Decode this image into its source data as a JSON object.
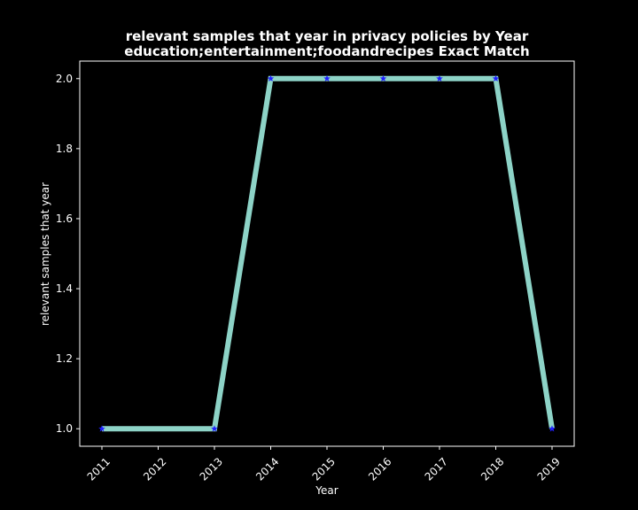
{
  "chart_data": {
    "type": "line",
    "title_line1": "relevant samples that year in privacy policies by Year",
    "title_line2": "education;entertainment;foodandrecipes Exact Match",
    "xlabel": "Year",
    "ylabel": "relevant samples that year",
    "x": [
      "2011",
      "2012",
      "2013",
      "2014",
      "2015",
      "2016",
      "2017",
      "2018",
      "2019"
    ],
    "x_ticks": [
      "2011",
      "2012",
      "2013",
      "2014",
      "2015",
      "2016",
      "2017",
      "2018",
      "2019"
    ],
    "points_x": [
      "2011",
      "2013",
      "2014",
      "2015",
      "2016",
      "2017",
      "2018",
      "2019"
    ],
    "points_y": [
      1.0,
      1.0,
      2.0,
      2.0,
      2.0,
      2.0,
      2.0,
      1.0
    ],
    "y_ticks": [
      "1.0",
      "1.2",
      "1.4",
      "1.6",
      "1.8",
      "2.0"
    ],
    "ylim": [
      0.95,
      2.05
    ],
    "grid": false,
    "line_color": "#8dd3c7",
    "marker_color": "#1f1fff",
    "marker": "star",
    "background": "#000000",
    "foreground": "#ffffff"
  }
}
